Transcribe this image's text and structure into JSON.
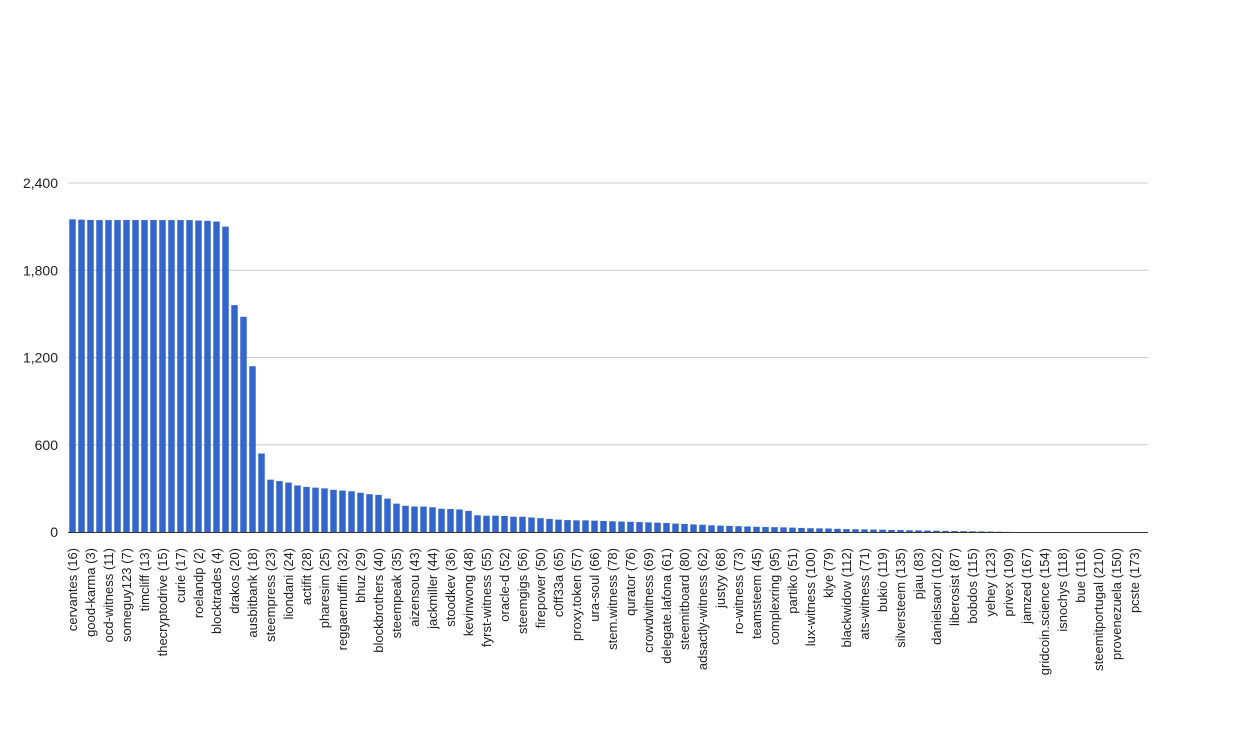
{
  "chart_data": {
    "type": "bar",
    "title": "",
    "xlabel": "",
    "ylabel": "",
    "ylim": [
      0,
      2400
    ],
    "yticks": [
      0,
      600,
      1200,
      1800,
      2400
    ],
    "ytick_labels": [
      "0",
      "600",
      "1,200",
      "1,800",
      "2,400"
    ],
    "grid": true,
    "legend": "none",
    "color": "#3366cc",
    "categories": [
      "cervantes (16)",
      "",
      "good-karma (3)",
      "",
      "ocd-witness (11)",
      "",
      "someguy123 (7)",
      "",
      "timcliff (13)",
      "",
      "thecryptodrive (15)",
      "",
      "curie (17)",
      "",
      "roelandp (2)",
      "",
      "blocktrades (4)",
      "",
      "drakos (20)",
      "",
      "ausbitbank (18)",
      "",
      "steempress (23)",
      "",
      "liondani (24)",
      "",
      "actifit (28)",
      "",
      "pharesim (25)",
      "",
      "reggaemuffin (32)",
      "",
      "bhuz (29)",
      "",
      "blockbrothers (40)",
      "",
      "steempeak (35)",
      "",
      "aizensou (43)",
      "",
      "jackmiller (44)",
      "",
      "stoodkev (36)",
      "",
      "kevinwong (48)",
      "",
      "fyrst-witness (55)",
      "",
      "oracle-d (52)",
      "",
      "steemgigs (56)",
      "",
      "firepower (50)",
      "",
      "c0ff33a (65)",
      "",
      "proxy.token (57)",
      "",
      "ura-soul (66)",
      "",
      "stem.witness (78)",
      "",
      "qurator (76)",
      "",
      "crowdwitness (69)",
      "",
      "delegate.lafona (61)",
      "",
      "steemitboard (80)",
      "",
      "adsactly-witness (62)",
      "",
      "justyy (68)",
      "",
      "ro-witness (73)",
      "",
      "teamsteem (45)",
      "",
      "complexring (95)",
      "",
      "partiko (51)",
      "",
      "lux-witness (100)",
      "",
      "klye (79)",
      "",
      "blackwidow (112)",
      "",
      "ats-witness (71)",
      "",
      "bukio (119)",
      "",
      "silversteem (135)",
      "",
      "pjau (83)",
      "",
      "danielsaori (102)",
      "",
      "liberosist (87)",
      "",
      "bobdos (115)",
      "",
      "yehey (123)",
      "",
      "privex (109)",
      "",
      "jamzed (167)",
      "",
      "gridcoin.science (154)",
      "",
      "isnochys (118)",
      "",
      "bue (116)",
      "",
      "steemitportugal (210)",
      "",
      "provenezuela (150)",
      "",
      "pcste (173)",
      ""
    ],
    "values": [
      2150,
      2148,
      2146,
      2145,
      2145,
      2145,
      2145,
      2145,
      2145,
      2145,
      2145,
      2145,
      2145,
      2145,
      2142,
      2140,
      2135,
      2100,
      1560,
      1480,
      1140,
      540,
      360,
      350,
      340,
      320,
      310,
      305,
      300,
      290,
      285,
      280,
      270,
      260,
      255,
      230,
      195,
      180,
      175,
      175,
      170,
      160,
      158,
      155,
      145,
      115,
      112,
      112,
      110,
      105,
      105,
      100,
      95,
      90,
      85,
      82,
      80,
      80,
      78,
      76,
      74,
      72,
      70,
      68,
      66,
      64,
      62,
      58,
      55,
      52,
      50,
      46,
      44,
      42,
      40,
      38,
      36,
      34,
      33,
      32,
      30,
      28,
      26,
      25,
      24,
      22,
      20,
      19,
      18,
      17,
      16,
      14,
      13,
      12,
      11,
      10,
      9,
      8,
      7,
      6,
      5,
      4,
      3,
      2,
      1,
      0,
      0,
      0,
      0,
      0,
      0,
      0,
      0,
      0,
      0,
      0,
      0,
      0,
      0,
      0
    ]
  }
}
